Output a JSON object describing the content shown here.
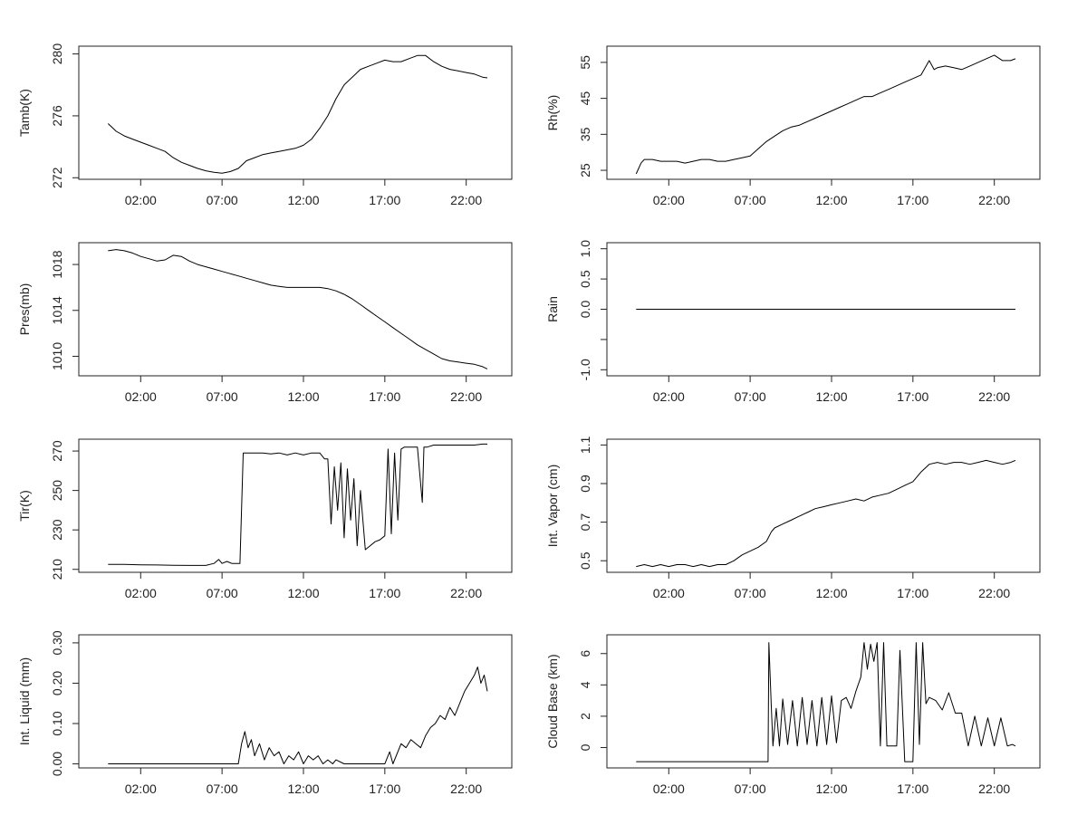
{
  "chart_data": [
    {
      "type": "line",
      "ylabel": "Tamb(K)",
      "x_ticks": [
        "02:00",
        "07:00",
        "12:00",
        "17:00",
        "22:00"
      ],
      "x_tick_hours": [
        2,
        7,
        12,
        17,
        22
      ],
      "xlim": [
        -1.8,
        24.8
      ],
      "y_ticks": [
        272,
        276,
        280
      ],
      "ylim": [
        271.9,
        280.5
      ],
      "grid": false,
      "series": [
        {
          "x": [
            0,
            0.5,
            1,
            1.5,
            2,
            2.5,
            3,
            3.5,
            4,
            4.5,
            5,
            5.5,
            6,
            6.5,
            7,
            7.5,
            8,
            8.5,
            9,
            9.5,
            10,
            10.5,
            11,
            11.5,
            12,
            12.5,
            13,
            13.5,
            14,
            14.5,
            15,
            15.5,
            16,
            16.5,
            17,
            17.5,
            18,
            18.5,
            19,
            19.5,
            20,
            20.5,
            21,
            21.5,
            22,
            22.5,
            23,
            23.3
          ],
          "y": [
            275.5,
            275.0,
            274.7,
            274.5,
            274.3,
            274.1,
            273.9,
            273.7,
            273.3,
            273.0,
            272.8,
            272.6,
            272.45,
            272.35,
            272.3,
            272.4,
            272.6,
            273.1,
            273.3,
            273.5,
            273.6,
            273.7,
            273.8,
            273.9,
            274.1,
            274.5,
            275.2,
            276.0,
            277.1,
            278.0,
            278.5,
            279.0,
            279.2,
            279.4,
            279.6,
            279.5,
            279.5,
            279.7,
            279.9,
            279.9,
            279.5,
            279.2,
            279.0,
            278.9,
            278.8,
            278.7,
            278.5,
            278.45
          ]
        }
      ]
    },
    {
      "type": "line",
      "ylabel": "Rh(%)",
      "x_ticks": [
        "02:00",
        "07:00",
        "12:00",
        "17:00",
        "22:00"
      ],
      "x_tick_hours": [
        2,
        7,
        12,
        17,
        22
      ],
      "xlim": [
        -1.8,
        24.8
      ],
      "y_ticks": [
        25,
        35,
        45,
        55
      ],
      "ylim": [
        22.5,
        59.5
      ],
      "grid": false,
      "series": [
        {
          "x": [
            0,
            0.3,
            0.5,
            1,
            1.5,
            2,
            2.5,
            3,
            3.5,
            4,
            4.5,
            5,
            5.5,
            6,
            6.5,
            7,
            7.5,
            8,
            8.5,
            9,
            9.5,
            10,
            10.5,
            11,
            11.5,
            12,
            12.5,
            13,
            13.5,
            14,
            14.5,
            15,
            15.5,
            16,
            16.5,
            17,
            17.5,
            18,
            18.3,
            18.5,
            19,
            19.5,
            20,
            20.5,
            21,
            21.5,
            22,
            22.5,
            23,
            23.3
          ],
          "y": [
            24,
            27,
            28,
            28,
            27.5,
            27.5,
            27.5,
            27,
            27.5,
            28,
            28,
            27.5,
            27.5,
            28,
            28.5,
            29,
            31,
            33,
            34.5,
            36,
            37,
            37.5,
            38.5,
            39.5,
            40.5,
            41.5,
            42.5,
            43.5,
            44.5,
            45.5,
            45.5,
            46.5,
            47.5,
            48.5,
            49.5,
            50.5,
            51.5,
            55.5,
            53,
            53.5,
            54,
            53.5,
            53,
            54,
            55,
            56,
            57,
            55.5,
            55.5,
            56
          ]
        }
      ]
    },
    {
      "type": "line",
      "ylabel": "Pres(mb)",
      "x_ticks": [
        "02:00",
        "07:00",
        "12:00",
        "17:00",
        "22:00"
      ],
      "x_tick_hours": [
        2,
        7,
        12,
        17,
        22
      ],
      "xlim": [
        -1.8,
        24.8
      ],
      "y_ticks": [
        1010,
        1014,
        1018
      ],
      "ylim": [
        1008.3,
        1019.9
      ],
      "grid": false,
      "series": [
        {
          "x": [
            0,
            0.5,
            1,
            1.5,
            2,
            2.5,
            3,
            3.5,
            4,
            4.5,
            5,
            5.5,
            6,
            6.5,
            7,
            7.5,
            8,
            8.5,
            9,
            9.5,
            10,
            10.5,
            11,
            11.5,
            12,
            12.5,
            13,
            13.5,
            14,
            14.5,
            15,
            15.5,
            16,
            16.5,
            17,
            17.5,
            18,
            18.5,
            19,
            19.5,
            20,
            20.5,
            21,
            21.5,
            22,
            22.5,
            23,
            23.3
          ],
          "y": [
            1019.2,
            1019.3,
            1019.2,
            1019.0,
            1018.7,
            1018.5,
            1018.3,
            1018.4,
            1018.8,
            1018.7,
            1018.3,
            1018.0,
            1017.8,
            1017.6,
            1017.4,
            1017.2,
            1017.0,
            1016.8,
            1016.6,
            1016.4,
            1016.2,
            1016.1,
            1016.0,
            1016.0,
            1016.0,
            1016.0,
            1016.0,
            1015.9,
            1015.7,
            1015.4,
            1015.0,
            1014.5,
            1014.0,
            1013.5,
            1013.0,
            1012.5,
            1012.0,
            1011.5,
            1011.0,
            1010.6,
            1010.2,
            1009.8,
            1009.6,
            1009.5,
            1009.4,
            1009.3,
            1009.1,
            1008.9
          ]
        }
      ]
    },
    {
      "type": "line",
      "ylabel": "Rain",
      "x_ticks": [
        "02:00",
        "07:00",
        "12:00",
        "17:00",
        "22:00"
      ],
      "x_tick_hours": [
        2,
        7,
        12,
        17,
        22
      ],
      "xlim": [
        -1.8,
        24.8
      ],
      "y_ticks": [
        -1.0,
        -0.5,
        0.0,
        0.5,
        1.0
      ],
      "y_tick_labels": [
        "-1.0",
        "",
        "0.0",
        "0.5",
        "1.0"
      ],
      "ylim": [
        -1.1,
        1.1
      ],
      "grid": false,
      "series": [
        {
          "x": [
            0,
            23.3
          ],
          "y": [
            0,
            0
          ]
        }
      ]
    },
    {
      "type": "line",
      "ylabel": "Tir(K)",
      "x_ticks": [
        "02:00",
        "07:00",
        "12:00",
        "17:00",
        "22:00"
      ],
      "x_tick_hours": [
        2,
        7,
        12,
        17,
        22
      ],
      "xlim": [
        -1.8,
        24.8
      ],
      "y_ticks": [
        210,
        230,
        250,
        270
      ],
      "ylim": [
        208.5,
        276
      ],
      "grid": false,
      "series": [
        {
          "x": [
            0,
            1,
            2,
            3,
            4,
            5,
            6,
            6.5,
            6.8,
            7,
            7.3,
            7.6,
            7.9,
            8.1,
            8.3,
            8.5,
            9,
            9.5,
            10,
            10.5,
            11,
            11.5,
            12,
            12.5,
            13,
            13.3,
            13.5,
            13.7,
            13.9,
            14.1,
            14.3,
            14.5,
            14.7,
            14.9,
            15.1,
            15.3,
            15.5,
            15.8,
            16.1,
            16.4,
            16.7,
            17,
            17.2,
            17.4,
            17.6,
            17.8,
            18,
            18.2,
            18.5,
            19,
            19.3,
            19.4,
            19.6,
            20,
            20.5,
            21,
            21.5,
            22,
            22.5,
            23,
            23.3
          ],
          "y": [
            212.5,
            212.5,
            212.3,
            212.2,
            212.1,
            212,
            212,
            213,
            215,
            213,
            214,
            213,
            213,
            213,
            269,
            269,
            269,
            269,
            268.5,
            269,
            268,
            269,
            268,
            269,
            269,
            266,
            266,
            233,
            262,
            240,
            264,
            226,
            261,
            235,
            256,
            222,
            250,
            220,
            222,
            224,
            225,
            227,
            271,
            228,
            269,
            235,
            271,
            272,
            272,
            272,
            244,
            272,
            272,
            273,
            273,
            273,
            273,
            273,
            273,
            273.5,
            273.5
          ]
        }
      ]
    },
    {
      "type": "line",
      "ylabel": "Int. Vapor (cm)",
      "x_ticks": [
        "02:00",
        "07:00",
        "12:00",
        "17:00",
        "22:00"
      ],
      "x_tick_hours": [
        2,
        7,
        12,
        17,
        22
      ],
      "xlim": [
        -1.8,
        24.8
      ],
      "y_ticks": [
        0.5,
        0.7,
        0.9,
        1.1
      ],
      "ylim": [
        0.44,
        1.13
      ],
      "grid": false,
      "series": [
        {
          "x": [
            0,
            0.5,
            1,
            1.5,
            2,
            2.5,
            3,
            3.5,
            4,
            4.5,
            5,
            5.5,
            6,
            6.5,
            7,
            7.5,
            8,
            8.3,
            8.5,
            9,
            9.5,
            10,
            10.5,
            11,
            11.5,
            12,
            12.5,
            13,
            13.5,
            14,
            14.5,
            15,
            15.5,
            16,
            16.5,
            17,
            17.5,
            18,
            18.5,
            19,
            19.5,
            20,
            20.5,
            21,
            21.5,
            22,
            22.5,
            23,
            23.3
          ],
          "y": [
            0.47,
            0.48,
            0.47,
            0.48,
            0.47,
            0.48,
            0.48,
            0.47,
            0.48,
            0.47,
            0.48,
            0.48,
            0.5,
            0.53,
            0.55,
            0.57,
            0.6,
            0.65,
            0.67,
            0.69,
            0.71,
            0.73,
            0.75,
            0.77,
            0.78,
            0.79,
            0.8,
            0.81,
            0.82,
            0.81,
            0.83,
            0.84,
            0.85,
            0.87,
            0.89,
            0.91,
            0.96,
            1.0,
            1.01,
            1.0,
            1.01,
            1.01,
            1.0,
            1.01,
            1.02,
            1.01,
            1.0,
            1.01,
            1.02
          ]
        }
      ]
    },
    {
      "type": "line",
      "ylabel": "Int. Liquid (mm)",
      "x_ticks": [
        "02:00",
        "07:00",
        "12:00",
        "17:00",
        "22:00"
      ],
      "x_tick_hours": [
        2,
        7,
        12,
        17,
        22
      ],
      "xlim": [
        -1.8,
        24.8
      ],
      "y_ticks": [
        0.0,
        0.1,
        0.2,
        0.3
      ],
      "y_tick_labels": [
        "0.00",
        "0.10",
        "0.20",
        "0.30"
      ],
      "ylim": [
        -0.01,
        0.32
      ],
      "grid": false,
      "series": [
        {
          "x": [
            0,
            2,
            4,
            6,
            8,
            8.2,
            8.4,
            8.6,
            8.8,
            9,
            9.3,
            9.6,
            9.9,
            10.2,
            10.5,
            10.8,
            11.1,
            11.4,
            11.7,
            12,
            12.3,
            12.6,
            12.9,
            13.2,
            13.5,
            13.8,
            14,
            14.5,
            15,
            16,
            17,
            17.2,
            17.3,
            17.5,
            18,
            18.3,
            18.6,
            18.9,
            19.2,
            19.5,
            19.8,
            20.1,
            20.4,
            20.7,
            21,
            21.3,
            21.6,
            21.9,
            22.2,
            22.5,
            22.7,
            22.9,
            23.1,
            23.3
          ],
          "y": [
            0,
            0,
            0,
            0,
            0,
            0.05,
            0.08,
            0.04,
            0.06,
            0.02,
            0.05,
            0.01,
            0.04,
            0.02,
            0.03,
            0.0,
            0.02,
            0.01,
            0.03,
            0.0,
            0.02,
            0.01,
            0.02,
            0.0,
            0.01,
            0.0,
            0.01,
            0.0,
            0.0,
            0.0,
            0.0,
            0.02,
            0.03,
            0.0,
            0.05,
            0.04,
            0.06,
            0.05,
            0.04,
            0.07,
            0.09,
            0.1,
            0.12,
            0.11,
            0.14,
            0.12,
            0.15,
            0.18,
            0.2,
            0.22,
            0.24,
            0.2,
            0.22,
            0.18
          ]
        }
      ]
    },
    {
      "type": "line",
      "ylabel": "Cloud Base (km)",
      "x_ticks": [
        "02:00",
        "07:00",
        "12:00",
        "17:00",
        "22:00"
      ],
      "x_tick_hours": [
        2,
        7,
        12,
        17,
        22
      ],
      "xlim": [
        -1.8,
        24.8
      ],
      "y_ticks": [
        0,
        2,
        4,
        6
      ],
      "ylim": [
        -1.3,
        7.2
      ],
      "grid": false,
      "series": [
        {
          "x": [
            0,
            2,
            4,
            6,
            8.1,
            8.15,
            8.3,
            8.4,
            8.6,
            8.8,
            9,
            9.3,
            9.6,
            9.9,
            10.2,
            10.5,
            10.8,
            11.1,
            11.4,
            11.7,
            12,
            12.3,
            12.6,
            12.9,
            13.2,
            13.5,
            13.8,
            14,
            14.2,
            14.4,
            14.6,
            14.8,
            15,
            15.2,
            15.4,
            15.7,
            16,
            16.2,
            16.5,
            17,
            17.2,
            17.4,
            17.6,
            17.8,
            18,
            18.4,
            18.8,
            19.2,
            19.6,
            20,
            20.4,
            20.8,
            21.2,
            21.6,
            22,
            22.4,
            22.8,
            23.1,
            23.3
          ],
          "y": [
            -0.9,
            -0.9,
            -0.9,
            -0.9,
            -0.9,
            6.7,
            2.6,
            0.1,
            2.5,
            0.1,
            3.1,
            0.2,
            3.0,
            0.1,
            3.2,
            0.2,
            3.0,
            0.1,
            3.2,
            0.2,
            3.3,
            0.3,
            3.0,
            3.2,
            2.5,
            3.6,
            4.5,
            6.7,
            5.0,
            6.6,
            5.5,
            6.7,
            0.1,
            6.7,
            0.1,
            0.1,
            0.1,
            6.2,
            -0.9,
            -0.9,
            6.7,
            0.2,
            6.7,
            2.8,
            3.2,
            3.0,
            2.4,
            3.5,
            2.2,
            2.2,
            0.1,
            2.0,
            0.1,
            1.9,
            0.1,
            1.9,
            0.1,
            0.2,
            0.1
          ]
        }
      ]
    }
  ]
}
